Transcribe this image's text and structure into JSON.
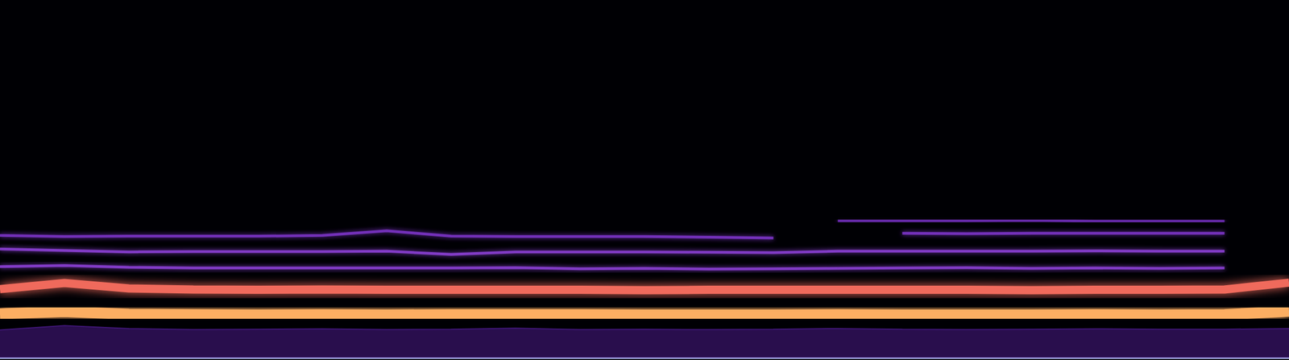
{
  "chart_data": {
    "type": "line",
    "x": [
      0,
      5,
      10,
      15,
      20,
      25,
      30,
      35,
      40,
      45,
      50,
      55,
      60,
      65,
      70,
      75,
      80,
      85,
      90,
      95,
      100
    ],
    "xlim": [
      0,
      100
    ],
    "ylim": [
      0,
      100
    ],
    "tick_labels": false,
    "grid": false,
    "series": [
      {
        "type": "area",
        "color": "#4a1a8a",
        "values": [
          7.8,
          9.0,
          8.2,
          7.9,
          8.0,
          8.1,
          7.9,
          8.0,
          8.3,
          7.9,
          8.0,
          7.9,
          8.0,
          8.2,
          8.0,
          7.9,
          8.0,
          8.1,
          8.0,
          8.0,
          8.2
        ]
      },
      {
        "color": "#6a2ab0",
        "values": [
          null,
          null,
          null,
          null,
          null,
          null,
          null,
          null,
          null,
          null,
          null,
          null,
          null,
          38.3,
          38.3,
          38.3,
          38.4,
          38.2,
          38.2,
          38.2,
          null
        ]
      },
      {
        "color": "#7a33c4",
        "values": [
          34.2,
          33.9,
          34.0,
          34.0,
          34.0,
          34.2,
          35.5,
          34.0,
          33.9,
          33.9,
          33.9,
          33.7,
          33.5,
          null,
          34.8,
          34.7,
          34.8,
          34.8,
          34.8,
          34.8,
          null
        ]
      },
      {
        "color": "#8a3fd1",
        "values": [
          30.4,
          30.0,
          29.6,
          29.7,
          29.7,
          29.7,
          29.8,
          28.9,
          29.6,
          29.6,
          29.6,
          29.5,
          29.4,
          29.8,
          29.8,
          29.8,
          29.8,
          29.9,
          29.8,
          29.8,
          null
        ]
      },
      {
        "color": "#8a3fd1",
        "values": [
          25.5,
          25.8,
          25.3,
          25.1,
          25.1,
          25.1,
          25.1,
          25.1,
          25.2,
          24.9,
          25.0,
          24.8,
          24.9,
          25.0,
          25.1,
          25.2,
          25.0,
          25.1,
          25.0,
          25.1,
          null
        ]
      },
      {
        "color": "#f06b5c",
        "values": [
          19.2,
          20.9,
          19.4,
          19.1,
          19.0,
          19.1,
          19.0,
          19.0,
          19.0,
          19.0,
          18.9,
          19.0,
          19.0,
          19.0,
          19.0,
          19.0,
          18.9,
          19.0,
          19.0,
          19.1,
          21.0
        ]
      },
      {
        "color": "#fcae62",
        "values": [
          12.3,
          12.9,
          12.2,
          12.1,
          12.0,
          12.1,
          12.0,
          12.1,
          12.1,
          12.1,
          12.0,
          12.0,
          12.0,
          12.1,
          12.0,
          12.0,
          12.0,
          12.1,
          12.0,
          12.1,
          13.0
        ]
      }
    ]
  }
}
